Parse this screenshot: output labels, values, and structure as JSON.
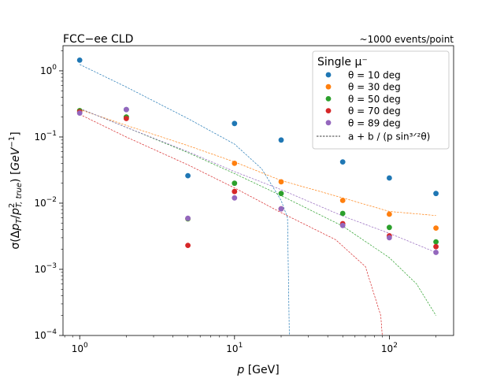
{
  "chart_data": {
    "type": "scatter",
    "title_left": "FCC−ee CLD",
    "title_right": "~1000 events/point",
    "xlabel_prefix": "p",
    "xlabel_unit": "[GeV]",
    "ylabel": "σ(Δp_T/p²_T,true) [GeV⁻¹]",
    "xscale": "log",
    "yscale": "log",
    "xlim": [
      0.78,
      260
    ],
    "ylim": [
      0.0001,
      2.4
    ],
    "xticks": [
      {
        "value": 1,
        "base": "10",
        "exp": "0"
      },
      {
        "value": 10,
        "base": "10",
        "exp": "1"
      },
      {
        "value": 100,
        "base": "10",
        "exp": "2"
      }
    ],
    "yticks": [
      {
        "value": 0.0001,
        "base": "10",
        "exp": "−4"
      },
      {
        "value": 0.001,
        "base": "10",
        "exp": "−3"
      },
      {
        "value": 0.01,
        "base": "10",
        "exp": "−2"
      },
      {
        "value": 0.1,
        "base": "10",
        "exp": "−1"
      },
      {
        "value": 1,
        "base": "10",
        "exp": "0"
      }
    ],
    "legend_title": "Single μ⁻",
    "legend_position": "top-right",
    "fit_legend_label": "a + b / (p sin³ᐟ²θ)",
    "x": [
      1,
      2,
      5,
      10,
      20,
      50,
      100,
      200
    ],
    "series": [
      {
        "name": "θ = 10 deg",
        "color": "#1f77b4",
        "values": [
          1.45,
          0.26,
          0.026,
          0.16,
          0.09,
          0.042,
          0.024,
          0.014
        ],
        "fit": [
          [
            1,
            1.25
          ],
          [
            2,
            0.57
          ],
          [
            5,
            0.19
          ],
          [
            10,
            0.078
          ],
          [
            15,
            0.033
          ],
          [
            20,
            0.011
          ],
          [
            22,
            0.006
          ],
          [
            22.6,
            0.0001
          ]
        ]
      },
      {
        "name": "θ = 30 deg",
        "color": "#ff7f0e",
        "values": [
          0.25,
          0.2,
          0.0058,
          0.04,
          0.021,
          0.011,
          0.0068,
          0.0042
        ],
        "fit": [
          [
            1,
            0.26
          ],
          [
            2,
            0.15
          ],
          [
            5,
            0.074
          ],
          [
            10,
            0.042
          ],
          [
            20,
            0.022
          ],
          [
            50,
            0.012
          ],
          [
            100,
            0.0075
          ],
          [
            200,
            0.0065
          ]
        ]
      },
      {
        "name": "θ = 50 deg",
        "color": "#2ca02c",
        "values": [
          0.25,
          0.2,
          0.0058,
          0.02,
          0.014,
          0.007,
          0.0043,
          0.0026
        ],
        "fit": [
          [
            1,
            0.27
          ],
          [
            2,
            0.14
          ],
          [
            5,
            0.058
          ],
          [
            10,
            0.028
          ],
          [
            20,
            0.013
          ],
          [
            50,
            0.0045
          ],
          [
            100,
            0.0015
          ],
          [
            150,
            0.0006
          ],
          [
            200,
            0.0002
          ]
        ]
      },
      {
        "name": "θ = 70 deg",
        "color": "#d62728",
        "values": [
          0.24,
          0.19,
          0.0023,
          0.015,
          0.0082,
          0.0049,
          0.0032,
          0.0022
        ],
        "fit": [
          [
            1,
            0.22
          ],
          [
            2,
            0.1
          ],
          [
            5,
            0.038
          ],
          [
            10,
            0.017
          ],
          [
            20,
            0.0072
          ],
          [
            45,
            0.0028
          ],
          [
            70,
            0.0011
          ],
          [
            88,
            0.0002
          ],
          [
            90,
            0.0001
          ]
        ]
      },
      {
        "name": "θ = 89 deg",
        "color": "#9467bd",
        "values": [
          0.23,
          0.26,
          0.0059,
          0.012,
          0.0082,
          0.0046,
          0.003,
          0.0018
        ],
        "fit": [
          [
            1,
            0.27
          ],
          [
            2,
            0.14
          ],
          [
            5,
            0.06
          ],
          [
            10,
            0.03
          ],
          [
            20,
            0.016
          ],
          [
            50,
            0.0064
          ],
          [
            100,
            0.0035
          ],
          [
            200,
            0.0018
          ]
        ]
      }
    ]
  }
}
